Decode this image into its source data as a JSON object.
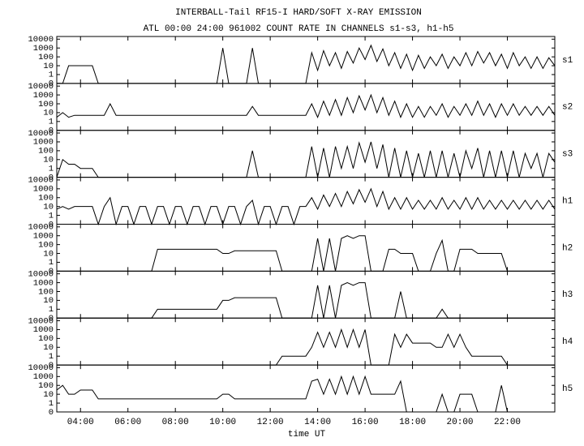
{
  "chart_data": {
    "type": "line",
    "title": "INTERBALL-Tail RF15-I HARD/SOFT X-RAY EMISSION",
    "subtitle": "ATL 00:00 24:00 961002  COUNT RATE IN CHANNELS s1-s3, h1-h5",
    "x_label": "time UT",
    "xlim": [
      3,
      24
    ],
    "xticks": [
      {
        "value": 4,
        "label": "04:00"
      },
      {
        "value": 6,
        "label": "06:00"
      },
      {
        "value": 8,
        "label": "08:00"
      },
      {
        "value": 10,
        "label": "10:00"
      },
      {
        "value": 12,
        "label": "12:00"
      },
      {
        "value": 14,
        "label": "14:00"
      },
      {
        "value": 16,
        "label": "16:00"
      },
      {
        "value": 18,
        "label": "18:00"
      },
      {
        "value": 20,
        "label": "20:00"
      },
      {
        "value": 22,
        "label": "22:00"
      }
    ],
    "ylim": [
      0,
      20000
    ],
    "yticks": [
      0,
      1,
      10,
      100,
      1000,
      10000
    ],
    "yscale": "log",
    "x": [
      3,
      3.25,
      3.5,
      3.75,
      4,
      4.25,
      4.5,
      4.75,
      5,
      5.25,
      5.5,
      5.75,
      6,
      6.25,
      6.5,
      6.75,
      7,
      7.25,
      7.5,
      7.75,
      8,
      8.25,
      8.5,
      8.75,
      9,
      9.25,
      9.5,
      9.75,
      10,
      10.25,
      10.5,
      10.75,
      11,
      11.25,
      11.5,
      11.75,
      12,
      12.25,
      12.5,
      12.75,
      13,
      13.25,
      13.5,
      13.75,
      14,
      14.25,
      14.5,
      14.75,
      15,
      15.25,
      15.5,
      15.75,
      16,
      16.25,
      16.5,
      16.75,
      17,
      17.25,
      17.5,
      17.75,
      18,
      18.25,
      18.5,
      18.75,
      19,
      19.25,
      19.5,
      19.75,
      20,
      20.25,
      20.5,
      20.75,
      21,
      21.25,
      21.5,
      21.75,
      22,
      22.25,
      22.5,
      22.75,
      23,
      23.25,
      23.5,
      23.75,
      24
    ],
    "series": [
      {
        "name": "s1",
        "color": "#000000",
        "values": [
          0,
          0,
          10,
          10,
          10,
          10,
          10,
          0,
          0,
          0,
          0,
          0,
          0,
          0,
          0,
          0,
          0,
          0,
          0,
          0,
          0,
          0,
          0,
          0,
          0,
          0,
          0,
          0,
          1000,
          0,
          0,
          0,
          0,
          1000,
          0,
          0,
          0,
          0,
          0,
          0,
          0,
          0,
          0,
          300,
          3,
          500,
          10,
          300,
          5,
          400,
          20,
          1000,
          50,
          2000,
          30,
          800,
          10,
          300,
          5,
          200,
          3,
          150,
          5,
          100,
          10,
          200,
          5,
          100,
          10,
          300,
          10,
          400,
          20,
          300,
          10,
          200,
          5,
          300,
          10,
          100,
          5,
          100,
          5,
          80,
          10
        ]
      },
      {
        "name": "s2",
        "color": "#000000",
        "values": [
          3,
          10,
          3,
          5,
          5,
          5,
          5,
          5,
          5,
          100,
          5,
          5,
          5,
          5,
          5,
          5,
          5,
          5,
          5,
          5,
          5,
          5,
          5,
          5,
          5,
          5,
          5,
          5,
          5,
          5,
          5,
          5,
          5,
          50,
          5,
          5,
          5,
          5,
          5,
          5,
          5,
          5,
          5,
          100,
          3,
          200,
          5,
          300,
          5,
          500,
          10,
          800,
          20,
          1000,
          10,
          500,
          5,
          200,
          3,
          100,
          3,
          50,
          3,
          50,
          5,
          100,
          3,
          50,
          5,
          100,
          5,
          200,
          5,
          100,
          3,
          100,
          5,
          100,
          5,
          50,
          5,
          50,
          5,
          50,
          5
        ]
      },
      {
        "name": "s3",
        "color": "#000000",
        "values": [
          0,
          10,
          3,
          3,
          1,
          1,
          1,
          0,
          0,
          0,
          0,
          0,
          0,
          0,
          0,
          0,
          0,
          0,
          0,
          0,
          0,
          0,
          0,
          0,
          0,
          0,
          0,
          0,
          0,
          0,
          0,
          0,
          0,
          100,
          0,
          0,
          0,
          0,
          0,
          0,
          0,
          0,
          0,
          300,
          0,
          200,
          0,
          300,
          1,
          300,
          1,
          800,
          5,
          1000,
          1,
          500,
          0,
          200,
          0,
          100,
          0,
          50,
          0,
          100,
          0,
          100,
          0,
          50,
          0,
          100,
          1,
          200,
          0,
          100,
          0,
          100,
          0,
          100,
          0,
          50,
          1,
          50,
          0,
          50,
          5
        ]
      },
      {
        "name": "h1",
        "color": "#000000",
        "values": [
          5,
          10,
          5,
          10,
          10,
          10,
          10,
          0,
          10,
          100,
          0,
          10,
          10,
          0,
          10,
          10,
          0,
          10,
          10,
          0,
          10,
          10,
          0,
          10,
          10,
          0,
          10,
          10,
          0,
          10,
          10,
          0,
          10,
          50,
          0,
          10,
          10,
          0,
          10,
          10,
          0,
          10,
          10,
          100,
          5,
          200,
          10,
          300,
          10,
          500,
          20,
          800,
          30,
          1000,
          10,
          500,
          5,
          100,
          5,
          100,
          5,
          50,
          5,
          50,
          5,
          100,
          5,
          50,
          5,
          100,
          5,
          100,
          5,
          50,
          5,
          50,
          5,
          50,
          5,
          50,
          5,
          50,
          5,
          50,
          5
        ]
      },
      {
        "name": "h2",
        "color": "#000000",
        "values": [
          0,
          0,
          0,
          0,
          0,
          0,
          0,
          0,
          0,
          0,
          0,
          0,
          0,
          0,
          0,
          0,
          0,
          30,
          30,
          30,
          30,
          30,
          30,
          30,
          30,
          30,
          30,
          30,
          10,
          10,
          20,
          20,
          20,
          20,
          20,
          20,
          20,
          20,
          0,
          0,
          0,
          0,
          0,
          0,
          500,
          0,
          500,
          0,
          500,
          1000,
          500,
          1000,
          1000,
          0,
          0,
          0,
          30,
          30,
          10,
          10,
          10,
          0,
          0,
          0,
          10,
          300,
          0,
          0,
          30,
          30,
          30,
          10,
          10,
          10,
          10,
          10,
          0,
          0,
          0,
          0,
          0,
          0,
          0,
          0,
          0
        ]
      },
      {
        "name": "h3",
        "color": "#000000",
        "values": [
          0,
          0,
          0,
          0,
          0,
          0,
          0,
          0,
          0,
          0,
          0,
          0,
          0,
          0,
          0,
          0,
          0,
          1,
          1,
          1,
          1,
          1,
          1,
          1,
          1,
          1,
          1,
          1,
          10,
          10,
          20,
          20,
          20,
          20,
          20,
          20,
          20,
          20,
          0,
          0,
          0,
          0,
          0,
          0,
          500,
          0,
          500,
          0,
          500,
          1000,
          500,
          1000,
          1000,
          0,
          0,
          0,
          0,
          0,
          100,
          0,
          0,
          0,
          0,
          0,
          0,
          1,
          0,
          0,
          0,
          0,
          0,
          0,
          0,
          0,
          0,
          0,
          0,
          0,
          0,
          0,
          0,
          0,
          0,
          0,
          0
        ]
      },
      {
        "name": "h4",
        "color": "#000000",
        "values": [
          0,
          0,
          0,
          0,
          0,
          0,
          0,
          0,
          0,
          0,
          0,
          0,
          0,
          0,
          0,
          0,
          0,
          0,
          0,
          0,
          0,
          0,
          0,
          0,
          0,
          0,
          0,
          0,
          0,
          0,
          0,
          0,
          0,
          0,
          0,
          0,
          0,
          0,
          1,
          1,
          1,
          1,
          1,
          10,
          500,
          10,
          500,
          10,
          1000,
          10,
          1000,
          10,
          1000,
          0,
          0,
          0,
          0,
          300,
          10,
          300,
          30,
          30,
          30,
          30,
          10,
          10,
          300,
          10,
          300,
          10,
          1,
          1,
          1,
          1,
          1,
          1,
          0,
          0,
          0,
          0,
          0,
          0,
          0,
          0,
          0
        ]
      },
      {
        "name": "h5",
        "color": "#000000",
        "values": [
          30,
          100,
          10,
          10,
          30,
          30,
          30,
          3,
          3,
          3,
          3,
          3,
          3,
          3,
          3,
          3,
          3,
          3,
          3,
          3,
          3,
          3,
          3,
          3,
          3,
          3,
          3,
          3,
          10,
          10,
          3,
          3,
          3,
          3,
          3,
          3,
          3,
          3,
          3,
          3,
          3,
          3,
          3,
          300,
          500,
          10,
          500,
          10,
          1000,
          10,
          1000,
          10,
          1000,
          10,
          10,
          10,
          10,
          10,
          300,
          0,
          0,
          0,
          0,
          0,
          0,
          10,
          0,
          0,
          10,
          10,
          10,
          0,
          0,
          0,
          0,
          100,
          0,
          0,
          0,
          0,
          0,
          0,
          0,
          0,
          0
        ]
      }
    ]
  }
}
